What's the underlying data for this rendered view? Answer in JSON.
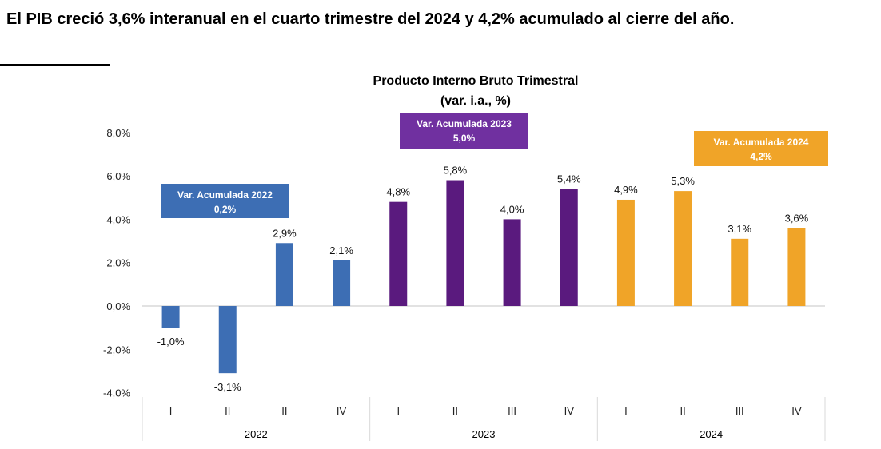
{
  "headline": "El PIB creció 3,6% interanual en el cuarto trimestre del 2024 y 4,2% acumulado al cierre del año.",
  "chart_data": {
    "type": "bar",
    "title": "Producto Interno Bruto Trimestral",
    "subtitle": "(var. i.a., %)",
    "xlabel": "",
    "ylabel": "",
    "ylim": [
      -4,
      8
    ],
    "yticks": [
      -4,
      -2,
      0,
      2,
      4,
      6,
      8
    ],
    "ytick_labels": [
      "-4,0%",
      "-2,0%",
      "0,0%",
      "2,0%",
      "4,0%",
      "6,0%",
      "8,0%"
    ],
    "grid": false,
    "categories": [
      "I",
      "II",
      "II",
      "IV",
      "I",
      "II",
      "III",
      "IV",
      "I",
      "II",
      "III",
      "IV"
    ],
    "groups": [
      "2022",
      "2023",
      "2024"
    ],
    "values": [
      -1.0,
      -3.1,
      2.9,
      2.1,
      4.8,
      5.8,
      4.0,
      5.4,
      4.9,
      5.3,
      3.1,
      3.6
    ],
    "value_labels": [
      "-1,0%",
      "-3,1%",
      "2,9%",
      "2,1%",
      "4,8%",
      "5,8%",
      "4,0%",
      "5,4%",
      "4,9%",
      "5,3%",
      "3,1%",
      "3,6%"
    ],
    "group_colors": [
      "#3D6EB4",
      "#5A1A7E",
      "#F0A428"
    ],
    "annotations": [
      {
        "label": "Var.  Acumulada 2022",
        "value": "0,2%",
        "color": "#3D6EB4"
      },
      {
        "label": "Var.  Acumulada 2023",
        "value": "5,0%",
        "color": "#7030A0"
      },
      {
        "label": "Var.  Acumulada 2024",
        "value": "4,2%",
        "color": "#F0A428"
      }
    ]
  }
}
